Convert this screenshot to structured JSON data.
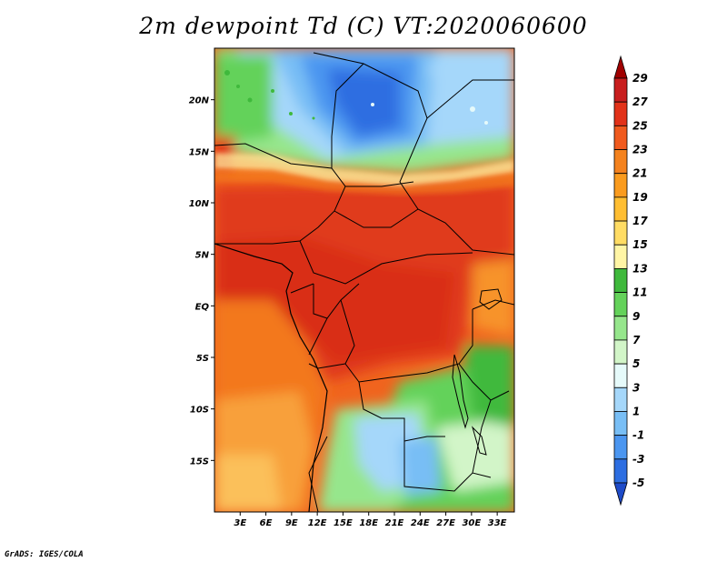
{
  "title": "2m dewpoint Td (C) VT:2020060600",
  "credit": "GrADS: IGES/COLA",
  "map": {
    "lat_labels": [
      "20N",
      "15N",
      "10N",
      "5N",
      "EQ",
      "5S",
      "10S",
      "15S"
    ],
    "lat_values": [
      20,
      15,
      10,
      5,
      0,
      -5,
      -10,
      -15
    ],
    "lon_labels": [
      "3E",
      "6E",
      "9E",
      "12E",
      "15E",
      "18E",
      "21E",
      "24E",
      "27E",
      "30E",
      "33E"
    ],
    "lon_values": [
      3,
      6,
      9,
      12,
      15,
      18,
      21,
      24,
      27,
      30,
      33
    ],
    "lon_range": [
      0,
      35
    ],
    "lat_range": [
      -20,
      25
    ]
  },
  "colorbar": {
    "labels": [
      "29",
      "27",
      "25",
      "23",
      "21",
      "19",
      "17",
      "15",
      "13",
      "11",
      "9",
      "7",
      "5",
      "3",
      "1",
      "-1",
      "-3",
      "-5"
    ],
    "colors": [
      "#a00000",
      "#c81e1e",
      "#e23219",
      "#f05a1e",
      "#f4821e",
      "#fa9b1e",
      "#ffbe32",
      "#ffdc64",
      "#fff5a5",
      "#3fb93c",
      "#64d25a",
      "#96e68c",
      "#d2f5c8",
      "#e6fafa",
      "#a5d7fa",
      "#78bef5",
      "#4b96f0",
      "#2d6ee1",
      "#1e4bc8"
    ]
  }
}
